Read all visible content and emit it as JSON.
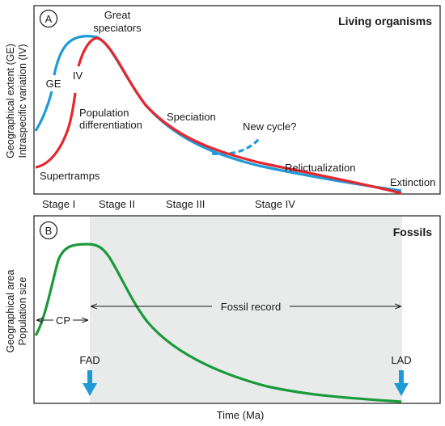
{
  "panel_a": {
    "letter": "A",
    "title": "Living organisms",
    "ylabel_line1": "Geographical extent (GE)",
    "ylabel_line2": "Intraspecific variation (IV)",
    "labels": {
      "ge": "GE",
      "iv": "IV",
      "great_line1": "Great",
      "great_line2": "speciators",
      "pop_line1": "Population",
      "pop_line2": "differentiation",
      "speciation": "Speciation",
      "new_cycle": "New cycle?",
      "relictualization": "Relictualization",
      "supertramps": "Supertramps",
      "extinction": "Extinction"
    },
    "colors": {
      "ge_curve": "#1e9bd7",
      "iv_curve": "#e8262d"
    }
  },
  "stages": [
    "Stage I",
    "Stage II",
    "Stage III",
    "Stage IV"
  ],
  "panel_b": {
    "letter": "B",
    "title": "Fossils",
    "ylabel_line1": "Geographical area",
    "ylabel_line2": "Population size",
    "cp": "CP",
    "fossil_record": "Fossil record",
    "fad": "FAD",
    "lad": "LAD",
    "colors": {
      "curve": "#1a9a3a",
      "shade": "#e8ebea",
      "arrow": "#1e9bd7"
    }
  },
  "xlabel": "Time (Ma)"
}
